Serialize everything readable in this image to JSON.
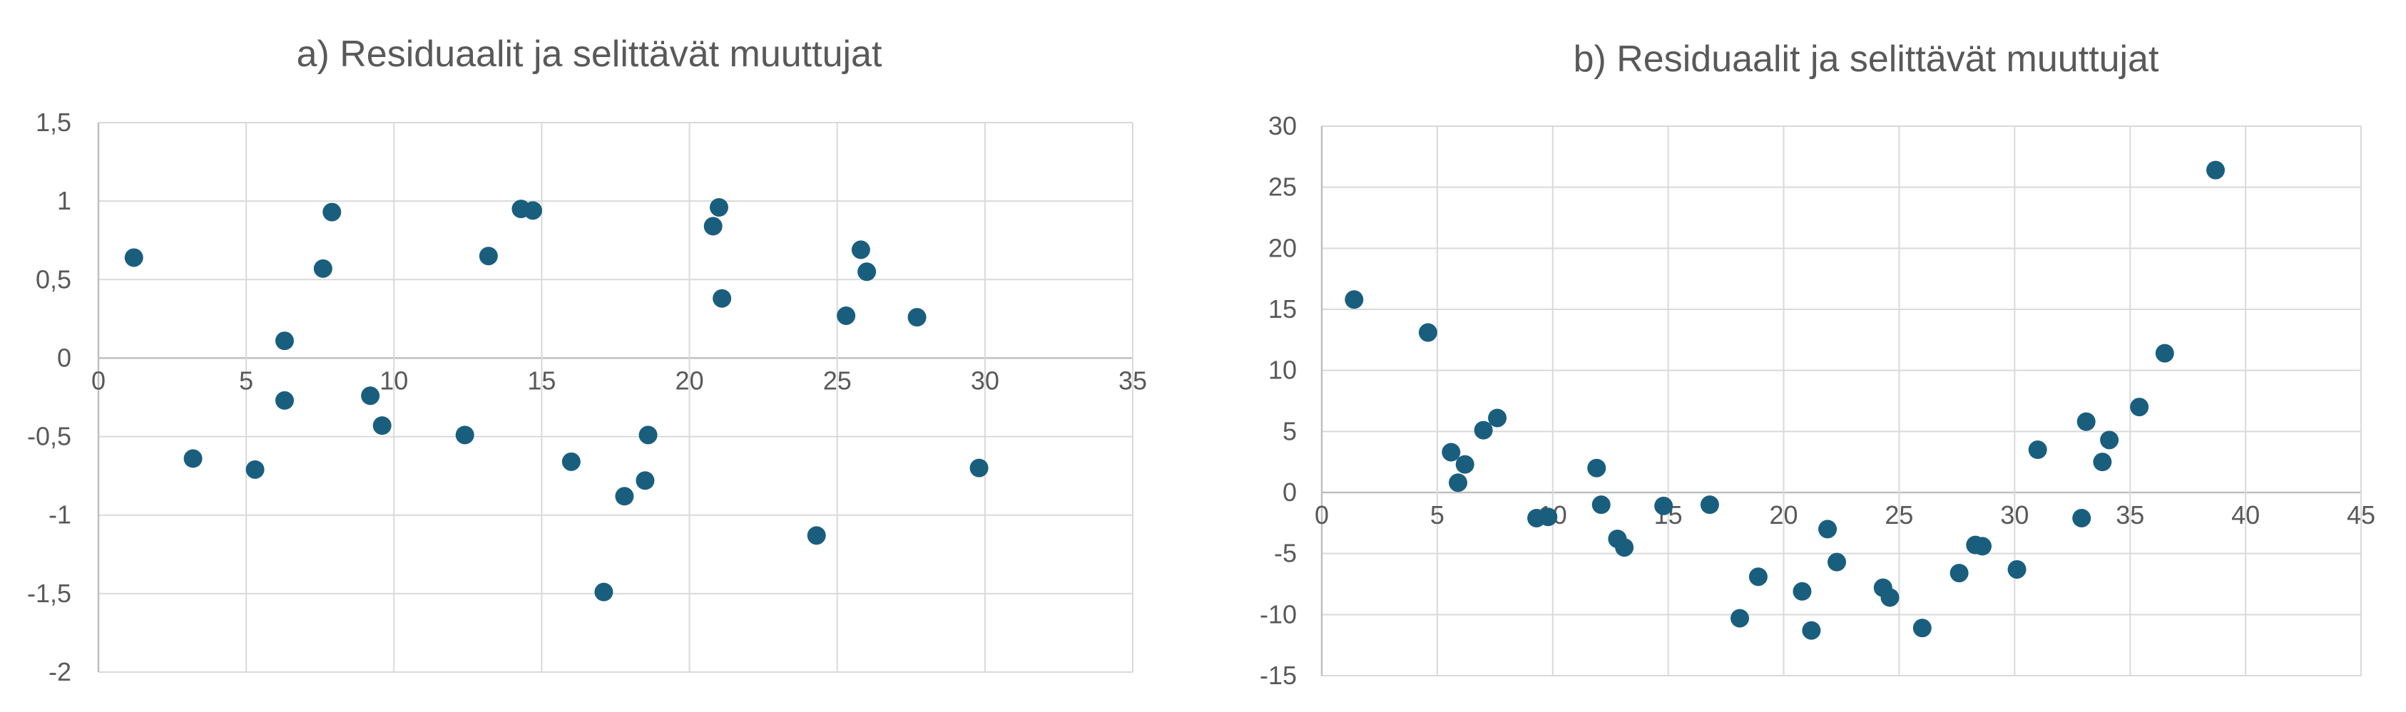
{
  "chart_data": [
    {
      "type": "scatter",
      "title": "a) Residuaalit ja selittävät muuttujat",
      "xlabel": "",
      "ylabel": "",
      "xlim": [
        0,
        35
      ],
      "ylim": [
        -2,
        1.5
      ],
      "xticks": [
        "0",
        "5",
        "10",
        "15",
        "20",
        "25",
        "30",
        "35"
      ],
      "yticks": [
        "1,5",
        "1",
        "0,5",
        "0",
        "-0,5",
        "-1",
        "-1,5",
        "-2"
      ],
      "grid": true,
      "legend": "none",
      "marker_color": "#1a5e7e",
      "points": [
        {
          "x": 1.2,
          "y": 0.64
        },
        {
          "x": 3.2,
          "y": -0.64
        },
        {
          "x": 5.3,
          "y": -0.71
        },
        {
          "x": 6.3,
          "y": 0.11
        },
        {
          "x": 6.3,
          "y": -0.27
        },
        {
          "x": 7.6,
          "y": 0.57
        },
        {
          "x": 7.9,
          "y": 0.93
        },
        {
          "x": 9.2,
          "y": -0.24
        },
        {
          "x": 9.6,
          "y": -0.43
        },
        {
          "x": 12.4,
          "y": -0.49
        },
        {
          "x": 13.2,
          "y": 0.65
        },
        {
          "x": 14.3,
          "y": 0.95
        },
        {
          "x": 14.7,
          "y": 0.94
        },
        {
          "x": 16.0,
          "y": -0.66
        },
        {
          "x": 17.1,
          "y": -1.49
        },
        {
          "x": 17.8,
          "y": -0.88
        },
        {
          "x": 18.5,
          "y": -0.78
        },
        {
          "x": 18.6,
          "y": -0.49
        },
        {
          "x": 20.8,
          "y": 0.84
        },
        {
          "x": 21.0,
          "y": 0.96
        },
        {
          "x": 21.1,
          "y": 0.38
        },
        {
          "x": 24.3,
          "y": -1.13
        },
        {
          "x": 25.3,
          "y": 0.27
        },
        {
          "x": 25.8,
          "y": 0.69
        },
        {
          "x": 26.0,
          "y": 0.55
        },
        {
          "x": 27.7,
          "y": 0.26
        },
        {
          "x": 29.8,
          "y": -0.7
        }
      ]
    },
    {
      "type": "scatter",
      "title": "b) Residuaalit ja selittävät muuttujat",
      "xlabel": "",
      "ylabel": "",
      "xlim": [
        0,
        45
      ],
      "ylim": [
        -15,
        30
      ],
      "xticks": [
        "0",
        "5",
        "10",
        "15",
        "20",
        "25",
        "30",
        "35",
        "40",
        "45"
      ],
      "yticks": [
        "30",
        "25",
        "20",
        "15",
        "10",
        "5",
        "0",
        "-5",
        "-10",
        "-15"
      ],
      "grid": true,
      "legend": "none",
      "marker_color": "#1a5e7e",
      "points": [
        {
          "x": 1.4,
          "y": 15.8
        },
        {
          "x": 4.6,
          "y": 13.1
        },
        {
          "x": 5.6,
          "y": 3.3
        },
        {
          "x": 5.9,
          "y": 0.8
        },
        {
          "x": 6.2,
          "y": 2.3
        },
        {
          "x": 7.0,
          "y": 5.1
        },
        {
          "x": 7.6,
          "y": 6.1
        },
        {
          "x": 9.3,
          "y": -2.1
        },
        {
          "x": 9.8,
          "y": -2.0
        },
        {
          "x": 11.9,
          "y": 2.0
        },
        {
          "x": 12.1,
          "y": -1.0
        },
        {
          "x": 12.8,
          "y": -3.8
        },
        {
          "x": 13.1,
          "y": -4.5
        },
        {
          "x": 14.8,
          "y": -1.1
        },
        {
          "x": 16.8,
          "y": -1.0
        },
        {
          "x": 18.1,
          "y": -10.3
        },
        {
          "x": 18.9,
          "y": -6.9
        },
        {
          "x": 20.8,
          "y": -8.1
        },
        {
          "x": 21.2,
          "y": -11.3
        },
        {
          "x": 21.9,
          "y": -3.0
        },
        {
          "x": 22.3,
          "y": -5.7
        },
        {
          "x": 24.3,
          "y": -7.8
        },
        {
          "x": 24.6,
          "y": -8.6
        },
        {
          "x": 26.0,
          "y": -11.1
        },
        {
          "x": 27.6,
          "y": -6.6
        },
        {
          "x": 28.3,
          "y": -4.3
        },
        {
          "x": 28.6,
          "y": -4.4
        },
        {
          "x": 30.1,
          "y": -6.3
        },
        {
          "x": 31.0,
          "y": 3.5
        },
        {
          "x": 32.9,
          "y": -2.1
        },
        {
          "x": 33.1,
          "y": 5.8
        },
        {
          "x": 33.8,
          "y": 2.5
        },
        {
          "x": 34.1,
          "y": 4.3
        },
        {
          "x": 35.4,
          "y": 7.0
        },
        {
          "x": 36.5,
          "y": 11.4
        },
        {
          "x": 38.7,
          "y": 26.4
        }
      ]
    }
  ]
}
